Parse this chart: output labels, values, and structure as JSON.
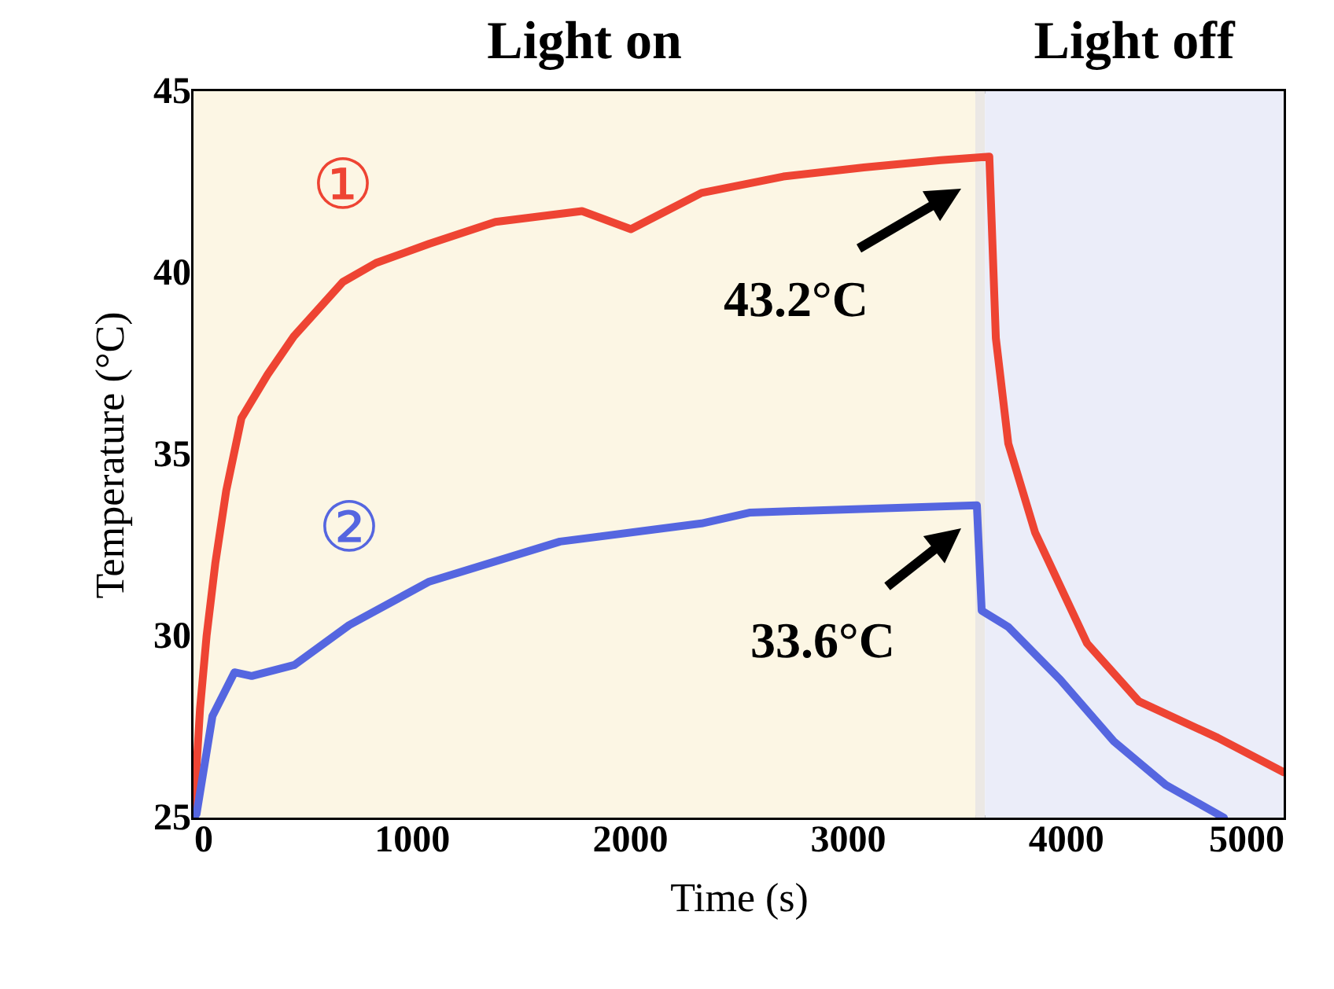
{
  "chart_data": {
    "type": "line",
    "xlabel": "Time (s)",
    "ylabel": "Temperature (°C)",
    "xlim": [
      0,
      5000
    ],
    "xticks": [
      0,
      1000,
      2000,
      3000,
      4000,
      5000
    ],
    "ylim": [
      25,
      45
    ],
    "yticks": [
      25,
      30,
      35,
      40,
      45
    ],
    "series": [
      {
        "name": "①",
        "color": "#ee4433",
        "x": [
          0,
          30,
          60,
          100,
          150,
          220,
          340,
          460,
          685,
          837,
          1082,
          1385,
          1782,
          2006,
          2330,
          2705,
          3074,
          3427,
          3650,
          3680,
          3737,
          3860,
          4098,
          4336,
          4697,
          5000
        ],
        "values": [
          25,
          28,
          30,
          32,
          34,
          36,
          37.2,
          38.25,
          39.75,
          40.27,
          40.8,
          41.4,
          41.7,
          41.2,
          42.2,
          42.65,
          42.9,
          43.1,
          43.2,
          38.2,
          35.3,
          32.85,
          29.8,
          28.2,
          27.2,
          26.25
        ]
      },
      {
        "name": "②",
        "color": "#5566e0",
        "x": [
          0,
          14,
          87,
          188,
          267,
          462,
          714,
          1082,
          1681,
          2330,
          2554,
          3593,
          3615,
          3737,
          3975,
          4221,
          4459,
          4726
        ],
        "values": [
          25,
          25.1,
          27.8,
          29,
          28.9,
          29.2,
          30.3,
          31.5,
          32.6,
          33.1,
          33.4,
          33.6,
          30.7,
          30.25,
          28.8,
          27.1,
          25.9,
          25
        ]
      }
    ],
    "annotations": [
      "43.2°C",
      "33.6°C"
    ],
    "bands": [
      {
        "axis": "x",
        "from": 0,
        "to": 3586,
        "label": "Light on",
        "color": "#fcf6e4"
      },
      {
        "axis": "x",
        "from": 3586,
        "to": 3630,
        "color": "#ebe8e5"
      },
      {
        "axis": "x",
        "from": 3630,
        "to": 5000,
        "label": "Light off",
        "color": "#ebedf9"
      }
    ]
  }
}
